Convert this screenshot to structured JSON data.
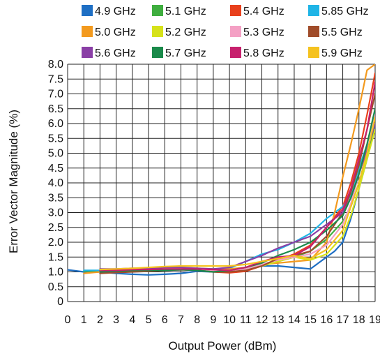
{
  "chart_data": {
    "type": "line",
    "xlabel": "Output Power (dBm)",
    "ylabel": "Error Vector Magnitude (%)",
    "xlim": [
      0,
      19
    ],
    "ylim": [
      0,
      8
    ],
    "x_ticks": [
      "0",
      "1",
      "2",
      "3",
      "4",
      "5",
      "6",
      "7",
      "8",
      "9",
      "10",
      "11",
      "12",
      "13",
      "14",
      "15",
      "16",
      "17",
      "18",
      "19"
    ],
    "y_ticks": [
      "0",
      "0.5",
      "1.0",
      "1.5",
      "2.0",
      "2.5",
      "3.0",
      "3.5",
      "4.0",
      "4.5",
      "5.0",
      "5.5",
      "6.0",
      "6.5",
      "7.0",
      "7.5",
      "8.0"
    ],
    "grid": true,
    "legend_position": "top",
    "series": [
      {
        "name": "4.9 GHz",
        "color": "#1e6fc4",
        "x": [
          0,
          1,
          2,
          3,
          4,
          5,
          6,
          7,
          8,
          9,
          10,
          11,
          12,
          13,
          14,
          15,
          15.5,
          16,
          16.5,
          17,
          17.5,
          18,
          18.5,
          19
        ],
        "y": [
          1.07,
          1.0,
          1.0,
          0.95,
          0.92,
          0.9,
          0.92,
          0.95,
          1.02,
          1.0,
          1.02,
          1.08,
          1.2,
          1.2,
          1.15,
          1.1,
          1.3,
          1.5,
          1.7,
          2.0,
          2.8,
          3.8,
          4.8,
          5.9
        ]
      },
      {
        "name": "5.1 GHz",
        "color": "#3fae3f",
        "x": [
          1,
          2,
          3,
          4,
          5,
          6,
          7,
          8,
          9,
          10,
          11,
          12,
          13,
          14,
          15,
          16,
          17,
          17.5,
          18,
          18.5,
          19
        ],
        "y": [
          1.02,
          1.03,
          1.05,
          1.08,
          1.1,
          1.12,
          1.12,
          1.1,
          1.08,
          1.05,
          1.08,
          1.2,
          1.35,
          1.5,
          1.7,
          2.1,
          2.7,
          3.2,
          4.0,
          5.0,
          6.0
        ]
      },
      {
        "name": "5.4 GHz",
        "color": "#e8401c",
        "x": [
          2,
          3,
          4,
          5,
          6,
          7,
          8,
          9,
          10,
          11,
          12,
          13,
          14,
          15,
          16,
          17,
          17.5,
          18,
          18.5,
          19
        ],
        "y": [
          1.0,
          1.0,
          1.02,
          1.05,
          1.07,
          1.08,
          1.05,
          1.0,
          0.97,
          1.02,
          1.2,
          1.4,
          1.6,
          1.9,
          2.5,
          3.2,
          4.0,
          5.0,
          6.3,
          7.7
        ]
      },
      {
        "name": "5.85 GHz",
        "color": "#1fb4e6",
        "x": [
          1,
          2,
          3,
          4,
          5,
          6,
          7,
          8,
          9,
          10,
          11,
          12,
          13,
          14,
          15,
          16,
          17,
          17.5,
          18,
          18.5,
          19
        ],
        "y": [
          1.05,
          1.05,
          1.05,
          1.05,
          1.05,
          1.05,
          1.07,
          1.08,
          1.1,
          1.12,
          1.35,
          1.6,
          1.75,
          2.0,
          2.3,
          2.8,
          3.2,
          3.6,
          4.5,
          5.3,
          6.4
        ]
      },
      {
        "name": "5.0 GHz",
        "color": "#f39a1e",
        "x": [
          1,
          2,
          3,
          4,
          5,
          6,
          7,
          8,
          9,
          10,
          11,
          12,
          13,
          14,
          15,
          16,
          16.5,
          17,
          17.5,
          18,
          18.5,
          19
        ],
        "y": [
          0.95,
          1.0,
          1.05,
          1.1,
          1.12,
          1.15,
          1.15,
          1.12,
          1.1,
          1.1,
          1.15,
          1.25,
          1.3,
          1.35,
          1.4,
          2.0,
          3.0,
          4.2,
          5.3,
          6.5,
          7.8,
          8.0
        ]
      },
      {
        "name": "5.2 GHz",
        "color": "#d6e21a",
        "x": [
          2,
          3,
          4,
          5,
          6,
          7,
          8,
          9,
          10,
          11,
          12,
          13,
          14,
          15,
          16,
          17,
          17.5,
          18,
          18.5,
          19
        ],
        "y": [
          1.0,
          1.02,
          1.05,
          1.1,
          1.12,
          1.12,
          1.1,
          1.08,
          1.05,
          1.1,
          1.2,
          1.35,
          1.5,
          1.4,
          1.6,
          2.2,
          2.9,
          3.8,
          4.8,
          5.8
        ]
      },
      {
        "name": "5.3 GHz",
        "color": "#f4a0c4",
        "x": [
          2,
          3,
          4,
          5,
          6,
          7,
          8,
          9,
          10,
          11,
          12,
          13,
          14,
          15,
          16,
          17,
          17.5,
          18,
          18.5,
          19
        ],
        "y": [
          1.0,
          1.02,
          1.05,
          1.08,
          1.1,
          1.12,
          1.1,
          1.05,
          1.05,
          1.1,
          1.25,
          1.4,
          1.5,
          1.6,
          1.9,
          2.6,
          3.3,
          4.3,
          5.3,
          6.3
        ]
      },
      {
        "name": "5.5 GHz",
        "color": "#a04c2a",
        "x": [
          2,
          3,
          4,
          5,
          6,
          7,
          8,
          9,
          10,
          11,
          12,
          13,
          14,
          15,
          16,
          17,
          17.5,
          18,
          18.5,
          19
        ],
        "y": [
          0.95,
          0.98,
          1.0,
          1.02,
          1.05,
          1.07,
          1.05,
          1.0,
          1.0,
          1.05,
          1.2,
          1.45,
          1.55,
          1.7,
          2.2,
          3.0,
          3.7,
          4.6,
          5.8,
          7.0
        ]
      },
      {
        "name": "5.6 GHz",
        "color": "#8a3fa6",
        "x": [
          2,
          3,
          4,
          5,
          6,
          7,
          8,
          9,
          10,
          11,
          12,
          13,
          14,
          15,
          16,
          17,
          17.5,
          18,
          18.5,
          19
        ],
        "y": [
          1.1,
          1.1,
          1.12,
          1.12,
          1.15,
          1.15,
          1.12,
          1.1,
          1.15,
          1.35,
          1.55,
          1.8,
          2.0,
          2.2,
          2.6,
          3.0,
          3.5,
          4.3,
          5.1,
          6.0
        ]
      },
      {
        "name": "5.7 GHz",
        "color": "#1a8a4a",
        "x": [
          2,
          3,
          4,
          5,
          6,
          7,
          8,
          9,
          10,
          11,
          12,
          13,
          14,
          15,
          16,
          17,
          17.5,
          18,
          18.5,
          19
        ],
        "y": [
          1.0,
          1.02,
          1.05,
          1.05,
          1.05,
          1.08,
          1.05,
          1.0,
          1.05,
          1.15,
          1.3,
          1.55,
          1.75,
          2.0,
          2.4,
          2.9,
          3.5,
          4.3,
          5.3,
          6.5
        ]
      },
      {
        "name": "5.8 GHz",
        "color": "#c7206d",
        "x": [
          2,
          3,
          4,
          5,
          6,
          7,
          8,
          9,
          10,
          11,
          12,
          13,
          14,
          15,
          16,
          17,
          17.5,
          18,
          18.5,
          19
        ],
        "y": [
          1.05,
          1.05,
          1.08,
          1.08,
          1.1,
          1.1,
          1.1,
          1.08,
          1.05,
          1.15,
          1.35,
          1.5,
          1.55,
          1.85,
          2.5,
          3.1,
          3.8,
          4.8,
          5.8,
          7.4
        ]
      },
      {
        "name": "5.9 GHz",
        "color": "#f5c21f",
        "x": [
          2,
          3,
          4,
          5,
          6,
          7,
          8,
          9,
          10,
          11,
          12,
          13,
          14,
          15,
          16,
          17,
          17.5,
          18,
          18.5,
          19
        ],
        "y": [
          1.08,
          1.1,
          1.12,
          1.15,
          1.18,
          1.2,
          1.2,
          1.2,
          1.2,
          1.25,
          1.35,
          1.45,
          1.55,
          1.45,
          1.75,
          2.4,
          3.2,
          4.0,
          5.0,
          6.2
        ]
      }
    ]
  }
}
